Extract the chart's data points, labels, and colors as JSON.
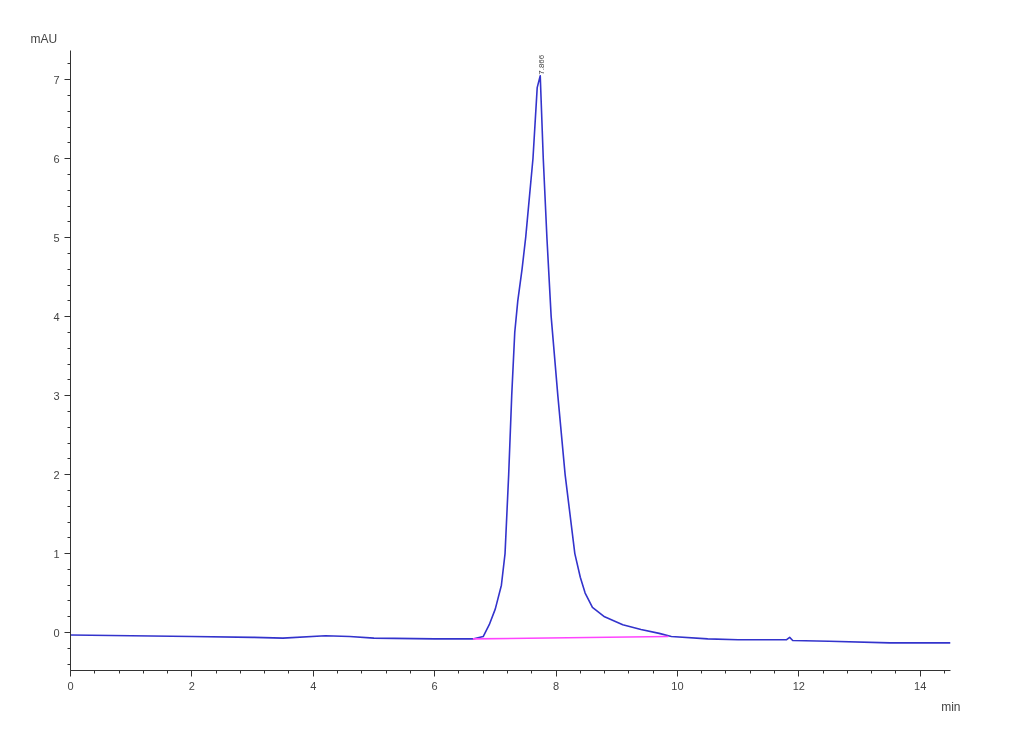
{
  "chart_data": {
    "type": "line",
    "xlabel": "min",
    "ylabel": "mAU",
    "xlim": [
      0,
      14.5
    ],
    "ylim": [
      -0.48,
      7.37
    ],
    "xticks": [
      0,
      2,
      4,
      6,
      8,
      10,
      12,
      14
    ],
    "yticks": [
      0,
      1,
      2,
      3,
      4,
      5,
      6,
      7
    ],
    "grid": false,
    "marker": "none",
    "line_style": "solid",
    "annotations": [
      {
        "text": "7.866",
        "x": 7.74,
        "y": 7.05
      }
    ],
    "series": [
      {
        "color": "#3333cc",
        "x": [
          0,
          1,
          2,
          3,
          3.5,
          4.2,
          4.6,
          5,
          6,
          6.63,
          6.8,
          6.9,
          7.0,
          7.1,
          7.16,
          7.22,
          7.27,
          7.32,
          7.37,
          7.44,
          7.5,
          7.56,
          7.62,
          7.69,
          7.74,
          7.79,
          7.85,
          7.92,
          8.03,
          8.15,
          8.31,
          8.4,
          8.48,
          8.6,
          8.8,
          9.1,
          9.4,
          9.7,
          9.9,
          10.5,
          11,
          11.8,
          11.85,
          11.9,
          12.5,
          13.5,
          14.5
        ],
        "values": [
          -0.03,
          -0.04,
          -0.05,
          -0.06,
          -0.07,
          -0.04,
          -0.05,
          -0.07,
          -0.08,
          -0.08,
          -0.05,
          0.1,
          0.3,
          0.6,
          1.0,
          2.0,
          3.0,
          3.8,
          4.2,
          4.6,
          5.0,
          5.5,
          6.0,
          6.9,
          7.05,
          6.0,
          5.0,
          4.0,
          3.0,
          2.0,
          1.0,
          0.7,
          0.5,
          0.32,
          0.2,
          0.1,
          0.04,
          -0.01,
          -0.05,
          -0.08,
          -0.09,
          -0.09,
          -0.06,
          -0.1,
          -0.11,
          -0.13,
          -0.13
        ]
      },
      {
        "color": "#ff44ff",
        "x": [
          6.63,
          9.85
        ],
        "values": [
          -0.08,
          -0.05
        ]
      }
    ]
  }
}
